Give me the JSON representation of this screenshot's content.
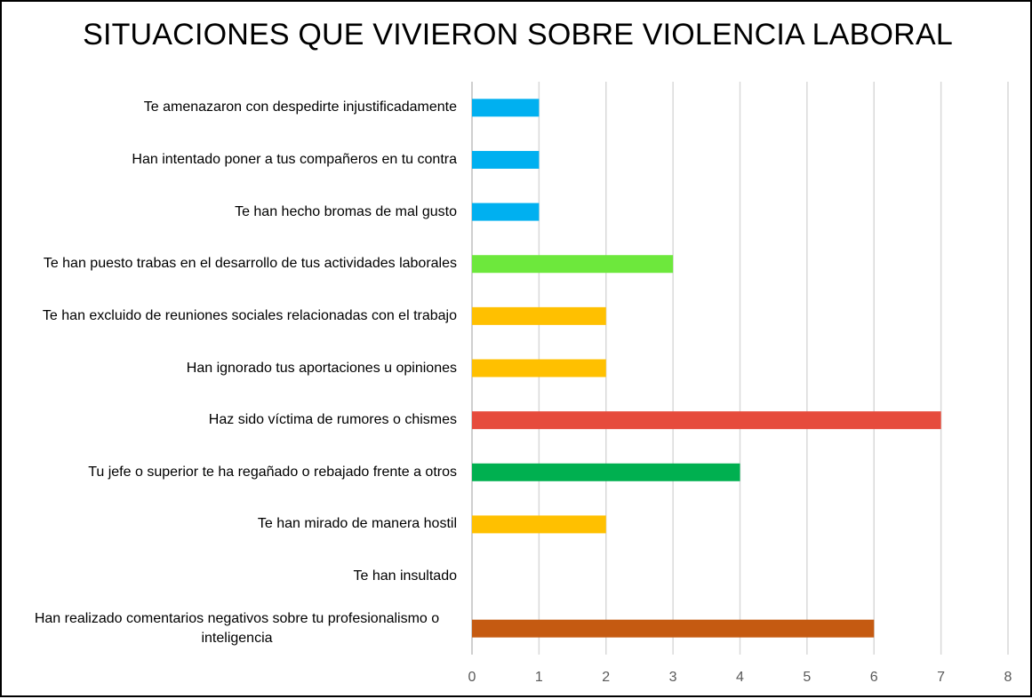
{
  "chart_data": {
    "type": "bar",
    "orientation": "horizontal",
    "title": "SITUACIONES QUE VIVIERON SOBRE VIOLENCIA LABORAL",
    "xlabel": "",
    "ylabel": "",
    "xlim": [
      0,
      8
    ],
    "ticks": [
      "0",
      "1",
      "2",
      "3",
      "4",
      "5",
      "6",
      "7",
      "8"
    ],
    "grid": true,
    "legend": "none",
    "categories": [
      "Te amenazaron con despedirte injustificadamente",
      "Han intentado poner a tus compañeros en tu contra",
      "Te han hecho bromas de mal gusto",
      "Te han puesto trabas en el desarrollo de tus actividades laborales",
      "Te han excluido de reuniones sociales relacionadas con el trabajo",
      "Han ignorado tus aportaciones u opiniones",
      "Haz sido víctima de rumores o chismes",
      "Tu jefe o superior te ha regañado o rebajado frente a otros",
      "Te han mirado de manera hostil",
      "Te han insultado",
      "Han realizado comentarios negativos sobre tu profesionalismo o inteligencia"
    ],
    "values": [
      1,
      1,
      1,
      3,
      2,
      2,
      7,
      4,
      2,
      0,
      6
    ],
    "colors": [
      "#00b0f0",
      "#00b0f0",
      "#00b0f0",
      "#6de83c",
      "#ffc000",
      "#ffc000",
      "#e64b3c",
      "#00b050",
      "#ffc000",
      "#ffc000",
      "#c55a11"
    ]
  }
}
